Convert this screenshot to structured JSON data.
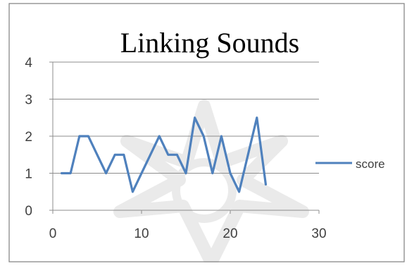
{
  "chart_data": {
    "type": "line",
    "title": "Linking Sounds",
    "xlabel": "",
    "ylabel": "",
    "xlim": [
      0,
      30
    ],
    "ylim": [
      0,
      4
    ],
    "x_ticks": [
      "0",
      "10",
      "20",
      "30"
    ],
    "y_ticks": [
      "0",
      "1",
      "2",
      "3",
      "4"
    ],
    "grid": "horizontal",
    "legend_position": "right",
    "series": [
      {
        "name": "score",
        "color": "#4f81bd",
        "x": [
          1,
          2,
          3,
          4,
          5,
          6,
          7,
          8,
          9,
          10,
          11,
          12,
          13,
          14,
          15,
          16,
          17,
          18,
          19,
          20,
          21,
          22,
          23,
          24
        ],
        "values": [
          1,
          1,
          2,
          2,
          1.5,
          1,
          1.5,
          1.5,
          0.5,
          1,
          1.5,
          2,
          1.5,
          1.5,
          1,
          2.5,
          2,
          1,
          2,
          1,
          0.5,
          1.5,
          2.5,
          0.7
        ]
      }
    ]
  },
  "colors": {
    "series": "#4f81bd",
    "gridline": "#8c8c8c",
    "axis": "#8c8c8c",
    "frame": "#7f7f7f",
    "watermark": "#d9d9d9"
  }
}
